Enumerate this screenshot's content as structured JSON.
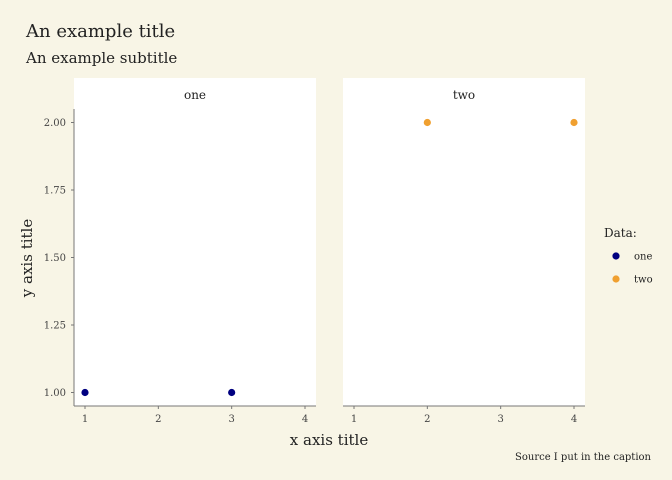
{
  "chart_data": {
    "type": "scatter",
    "title": "An example title",
    "subtitle": "An example subtitle",
    "xlabel": "x axis title",
    "ylabel": "y axis title",
    "caption": "Source I put in the caption",
    "xlim": [
      0.85,
      4.15
    ],
    "ylim": [
      0.95,
      2.05
    ],
    "x_ticks": [
      1,
      2,
      3,
      4
    ],
    "y_ticks": [
      1.0,
      1.25,
      1.5,
      1.75,
      2.0
    ],
    "y_tick_labels": [
      "1.00",
      "1.25",
      "1.50",
      "1.75",
      "2.00"
    ],
    "grid": false,
    "facets": [
      "one",
      "two"
    ],
    "legend": {
      "title": "Data:",
      "placement": "right",
      "entries": [
        {
          "name": "one",
          "color": "#000080"
        },
        {
          "name": "two",
          "color": "#f0a030"
        }
      ]
    },
    "series": [
      {
        "name": "one",
        "facet": "one",
        "color": "#000080",
        "points": [
          {
            "x": 1,
            "y": 1.0
          },
          {
            "x": 3,
            "y": 1.0
          }
        ]
      },
      {
        "name": "two",
        "facet": "two",
        "color": "#f0a030",
        "points": [
          {
            "x": 2,
            "y": 2.0
          },
          {
            "x": 4,
            "y": 2.0
          }
        ]
      }
    ]
  }
}
